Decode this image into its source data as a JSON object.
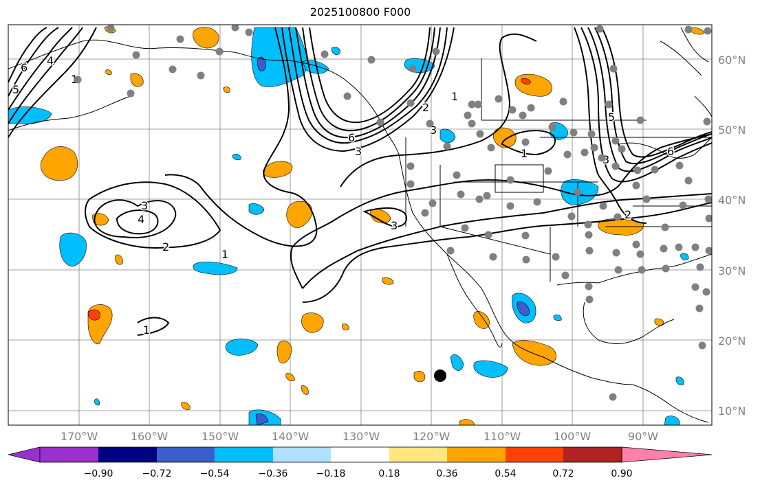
{
  "title": "2025100800 F000",
  "lat_labels": [
    "60°N",
    "50°N",
    "40°N",
    "30°N",
    "20°N",
    "10°N"
  ],
  "lon_labels": [
    "170°W",
    "160°W",
    "150°W",
    "140°W",
    "130°W",
    "120°W",
    "110°W",
    "100°W",
    "90°W"
  ],
  "colorbar": {
    "ticks": [
      "−0.90",
      "−0.72",
      "−0.54",
      "−0.36",
      "−0.18",
      "0.18",
      "0.36",
      "0.54",
      "0.72",
      "0.90"
    ],
    "colors": [
      "#9b30d0",
      "#000080",
      "#3a5fcd",
      "#00bfff",
      "#b0e0ff",
      "#ffffff",
      "#ffe680",
      "#ffa500",
      "#ff4000",
      "#b22222",
      "#ff80aa"
    ]
  },
  "contour_labels": [
    "6",
    "5",
    "4",
    "3",
    "2",
    "1",
    "6",
    "3",
    "2",
    "1",
    "3",
    "4",
    "2",
    "1",
    "3",
    "1",
    "1",
    "2",
    "5",
    "6",
    "3"
  ],
  "colors": {
    "pos1": "#ffa500",
    "pos2": "#ff4000",
    "neg1": "#00bfff",
    "neg2": "#3a5fcd",
    "grid": "#808080",
    "dots": "#808080"
  }
}
